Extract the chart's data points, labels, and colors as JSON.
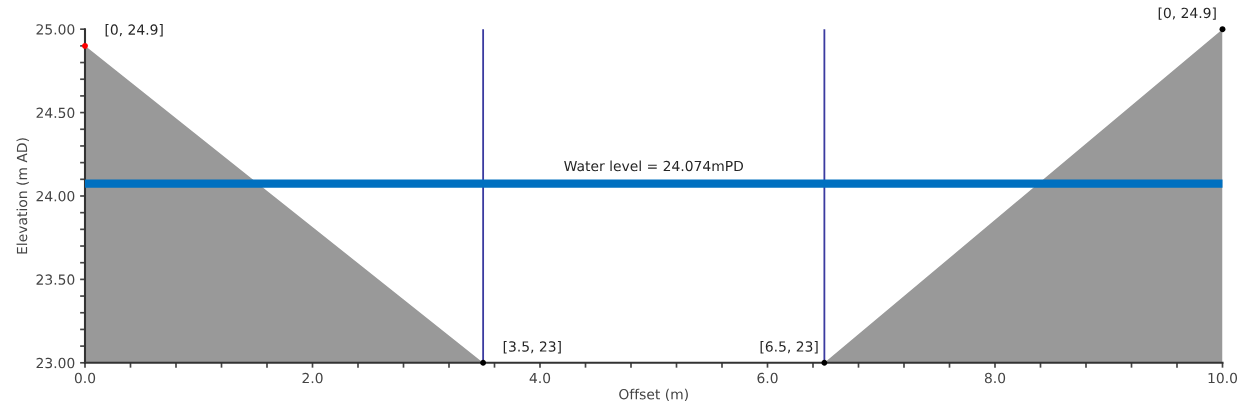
{
  "chart_data": {
    "type": "area",
    "xlabel": "Offset (m)",
    "ylabel": "Elevation (m AD)",
    "series": [
      {
        "color": "#999999",
        "x": [
          0,
          3.5,
          6.5,
          10
        ],
        "values": [
          24.9,
          23,
          23,
          25
        ]
      },
      {
        "type": "scatter",
        "marker": "circle",
        "colors": [
          "#ff0000",
          "#000000",
          "#000000",
          "#000000"
        ],
        "x": [
          0,
          3.5,
          6.5,
          10
        ],
        "values": [
          24.9,
          23,
          23,
          25
        ]
      }
    ],
    "ref_lines": [
      {
        "axis": "x",
        "value": 3.5,
        "color": "#3b3ba0"
      },
      {
        "axis": "x",
        "value": 6.5,
        "color": "#3b3ba0"
      },
      {
        "axis": "y",
        "value": 24.074,
        "label": "Water level = 24.074mPD",
        "color": "#0070c0"
      }
    ],
    "annotations": [
      {
        "text": "[0, 24.9]",
        "x": 0,
        "y": 24.9
      },
      {
        "text": "[3.5, 23]",
        "x": 3.5,
        "y": 23
      },
      {
        "text": "[6.5, 23]",
        "x": 6.5,
        "y": 23
      },
      {
        "text": "[0, 24.9]",
        "x": 10,
        "y": 25
      }
    ],
    "xlim": [
      0,
      10
    ],
    "ylim": [
      23,
      25
    ],
    "xticks": [
      {
        "value": 0,
        "label": "0.0"
      },
      {
        "value": 0.4,
        "label": null
      },
      {
        "value": 0.8,
        "label": null
      },
      {
        "value": 1.2,
        "label": null
      },
      {
        "value": 1.6,
        "label": null
      },
      {
        "value": 2,
        "label": "2.0"
      },
      {
        "value": 2.4,
        "label": null
      },
      {
        "value": 2.8,
        "label": null
      },
      {
        "value": 3.2,
        "label": null
      },
      {
        "value": 3.6,
        "label": null
      },
      {
        "value": 4,
        "label": "4.0"
      },
      {
        "value": 4.4,
        "label": null
      },
      {
        "value": 4.8,
        "label": null
      },
      {
        "value": 5.2,
        "label": null
      },
      {
        "value": 5.6,
        "label": null
      },
      {
        "value": 6,
        "label": "6.0"
      },
      {
        "value": 6.4,
        "label": null
      },
      {
        "value": 6.8,
        "label": null
      },
      {
        "value": 7.2,
        "label": null
      },
      {
        "value": 7.6,
        "label": null
      },
      {
        "value": 8,
        "label": "8.0"
      },
      {
        "value": 8.4,
        "label": null
      },
      {
        "value": 8.8,
        "label": null
      },
      {
        "value": 9.2,
        "label": null
      },
      {
        "value": 9.6,
        "label": null
      },
      {
        "value": 10,
        "label": "10.0"
      }
    ],
    "yticks": [
      {
        "value": 23,
        "label": "23.00"
      },
      {
        "value": 23.1,
        "label": null
      },
      {
        "value": 23.2,
        "label": null
      },
      {
        "value": 23.3,
        "label": null
      },
      {
        "value": 23.4,
        "label": null
      },
      {
        "value": 23.5,
        "label": "23.50"
      },
      {
        "value": 23.6,
        "label": null
      },
      {
        "value": 23.7,
        "label": null
      },
      {
        "value": 23.8,
        "label": null
      },
      {
        "value": 23.9,
        "label": null
      },
      {
        "value": 24,
        "label": "24.00"
      },
      {
        "value": 24.1,
        "label": null
      },
      {
        "value": 24.2,
        "label": null
      },
      {
        "value": 24.3,
        "label": null
      },
      {
        "value": 24.4,
        "label": null
      },
      {
        "value": 24.5,
        "label": "24.50"
      },
      {
        "value": 24.6,
        "label": null
      },
      {
        "value": 24.7,
        "label": null
      },
      {
        "value": 24.8,
        "label": null
      },
      {
        "value": 24.9,
        "label": null
      },
      {
        "value": 25,
        "label": "25.00"
      }
    ],
    "grid": false,
    "legend": false
  }
}
